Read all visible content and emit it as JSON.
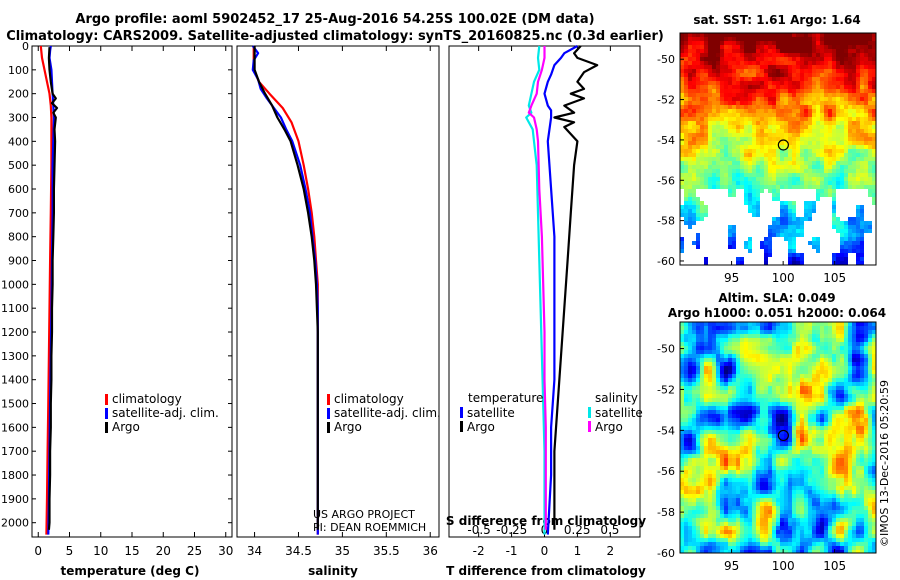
{
  "header": {
    "title_line1": "Argo profile: aoml 5902452_17 25-Aug-2016 54.25S 100.02E (DM data)",
    "title_line2": "Climatology: CARS2009. Satellite-adjusted climatology: synTS_20160825.nc (0.3d earlier)"
  },
  "colors": {
    "climatology": "#ff0000",
    "satellite_adj": "#0000ff",
    "argo": "#000000",
    "t_satellite": "#0000ff",
    "t_argo": "#000000",
    "s_satellite": "#00e8e8",
    "s_argo": "#ff00ff"
  },
  "chart_data": [
    {
      "id": "temperature",
      "type": "line",
      "xlabel": "temperature (deg C)",
      "ylabel": "",
      "xlim": [
        -1,
        31
      ],
      "ylim": [
        2060,
        0
      ],
      "xticks": [
        0,
        5,
        10,
        15,
        20,
        25,
        30
      ],
      "xtick_labels": [
        "0",
        "5",
        "10",
        "15",
        "20",
        "25",
        "30"
      ],
      "yticks": [
        0,
        100,
        200,
        300,
        400,
        500,
        600,
        700,
        800,
        900,
        1000,
        1100,
        1200,
        1300,
        1400,
        1500,
        1600,
        1700,
        1800,
        1900,
        2000
      ],
      "legend": [
        "climatology",
        "satellite-adj. clim.",
        "Argo"
      ],
      "series": [
        {
          "name": "climatology",
          "color_key": "climatology",
          "points": [
            [
              0.4,
              0
            ],
            [
              0.6,
              50
            ],
            [
              1.0,
              100
            ],
            [
              1.4,
              150
            ],
            [
              1.8,
              200
            ],
            [
              2.0,
              250
            ],
            [
              2.1,
              300
            ],
            [
              2.1,
              400
            ],
            [
              2.1,
              500
            ],
            [
              2.0,
              700
            ],
            [
              1.9,
              900
            ],
            [
              1.8,
              1100
            ],
            [
              1.7,
              1300
            ],
            [
              1.6,
              1500
            ],
            [
              1.5,
              1700
            ],
            [
              1.4,
              1900
            ],
            [
              1.3,
              2050
            ]
          ]
        },
        {
          "name": "satellite-adj. clim.",
          "color_key": "satellite_adj",
          "points": [
            [
              2.0,
              0
            ],
            [
              1.9,
              20
            ],
            [
              1.8,
              50
            ],
            [
              2.1,
              100
            ],
            [
              2.2,
              150
            ],
            [
              2.3,
              200
            ],
            [
              2.4,
              250
            ],
            [
              2.5,
              300
            ],
            [
              2.4,
              400
            ],
            [
              2.3,
              500
            ],
            [
              2.3,
              700
            ],
            [
              2.2,
              900
            ],
            [
              2.1,
              1100
            ],
            [
              2.0,
              1300
            ],
            [
              1.9,
              1500
            ],
            [
              1.8,
              1700
            ],
            [
              1.7,
              1900
            ],
            [
              1.6,
              2050
            ]
          ]
        },
        {
          "name": "Argo",
          "color_key": "argo",
          "points": [
            [
              1.8,
              5
            ],
            [
              1.7,
              50
            ],
            [
              1.8,
              100
            ],
            [
              2.0,
              150
            ],
            [
              2.3,
              200
            ],
            [
              2.8,
              220
            ],
            [
              2.2,
              240
            ],
            [
              3.0,
              260
            ],
            [
              2.4,
              280
            ],
            [
              2.8,
              300
            ],
            [
              2.6,
              350
            ],
            [
              2.7,
              400
            ],
            [
              2.6,
              500
            ],
            [
              2.5,
              600
            ],
            [
              2.5,
              700
            ],
            [
              2.4,
              800
            ],
            [
              2.3,
              900
            ],
            [
              2.3,
              1000
            ],
            [
              2.2,
              1100
            ],
            [
              2.2,
              1200
            ],
            [
              2.1,
              1300
            ],
            [
              2.1,
              1400
            ],
            [
              2.0,
              1500
            ],
            [
              2.0,
              1600
            ],
            [
              1.9,
              1700
            ],
            [
              1.9,
              1800
            ],
            [
              1.8,
              1900
            ],
            [
              1.8,
              2000
            ],
            [
              1.7,
              2030
            ]
          ]
        }
      ]
    },
    {
      "id": "salinity",
      "type": "line",
      "xlabel": "salinity",
      "xlim": [
        33.8,
        36.1
      ],
      "ylim": [
        2060,
        0
      ],
      "xticks": [
        34,
        34.5,
        35,
        35.5,
        36
      ],
      "xtick_labels": [
        "34",
        "34.5",
        "35",
        "35.5",
        "36"
      ],
      "legend": [
        "climatology",
        "satellite-adj. clim.",
        "Argo"
      ],
      "annotation_line1": "US ARGO PROJECT",
      "annotation_line2": "PI: DEAN ROEMMICH",
      "series": [
        {
          "name": "climatology",
          "color_key": "climatology",
          "points": [
            [
              33.99,
              0
            ],
            [
              33.99,
              100
            ],
            [
              34.05,
              150
            ],
            [
              34.17,
              200
            ],
            [
              34.32,
              260
            ],
            [
              34.42,
              320
            ],
            [
              34.5,
              400
            ],
            [
              34.56,
              500
            ],
            [
              34.61,
              600
            ],
            [
              34.65,
              700
            ],
            [
              34.68,
              800
            ],
            [
              34.7,
              900
            ],
            [
              34.72,
              1000
            ],
            [
              34.72,
              1200
            ],
            [
              34.72,
              1500
            ],
            [
              34.72,
              2050
            ]
          ]
        },
        {
          "name": "satellite-adj. clim.",
          "color_key": "satellite_adj",
          "points": [
            [
              33.98,
              0
            ],
            [
              34.04,
              30
            ],
            [
              33.99,
              60
            ],
            [
              33.98,
              100
            ],
            [
              34.04,
              140
            ],
            [
              34.07,
              180
            ],
            [
              34.14,
              220
            ],
            [
              34.22,
              260
            ],
            [
              34.3,
              300
            ],
            [
              34.36,
              350
            ],
            [
              34.43,
              400
            ],
            [
              34.52,
              500
            ],
            [
              34.58,
              600
            ],
            [
              34.63,
              700
            ],
            [
              34.66,
              800
            ],
            [
              34.69,
              900
            ],
            [
              34.71,
              1000
            ],
            [
              34.72,
              1100
            ],
            [
              34.72,
              1300
            ],
            [
              34.72,
              1500
            ],
            [
              34.72,
              2050
            ]
          ]
        },
        {
          "name": "Argo",
          "color_key": "argo",
          "points": [
            [
              34.0,
              0
            ],
            [
              34.0,
              50
            ],
            [
              34.0,
              100
            ],
            [
              34.05,
              150
            ],
            [
              34.12,
              200
            ],
            [
              34.2,
              250
            ],
            [
              34.26,
              300
            ],
            [
              34.34,
              350
            ],
            [
              34.41,
              400
            ],
            [
              34.49,
              500
            ],
            [
              34.56,
              600
            ],
            [
              34.61,
              700
            ],
            [
              34.65,
              800
            ],
            [
              34.68,
              900
            ],
            [
              34.7,
              1000
            ],
            [
              34.71,
              1100
            ],
            [
              34.72,
              1200
            ],
            [
              34.72,
              1500
            ],
            [
              34.72,
              2030
            ]
          ]
        }
      ]
    },
    {
      "id": "difference",
      "type": "line",
      "xlabel": "T difference from climatology",
      "top_xlabel": "S difference from climatology",
      "xlim": [
        -2.9,
        2.9
      ],
      "top_xlim": [
        -0.73,
        0.73
      ],
      "ylim": [
        2060,
        0
      ],
      "xticks": [
        -2,
        -1,
        0,
        1,
        2
      ],
      "xtick_labels": [
        "-2",
        "-1",
        "0",
        "1",
        "2"
      ],
      "top_xticks": [
        -0.5,
        -0.25,
        0,
        0.25,
        0.5
      ],
      "top_xtick_labels": [
        "-0.5",
        "-0.25",
        "0",
        "0.25",
        "0.5"
      ],
      "legend_temperature_title": "temperature",
      "legend_salinity_title": "salinity",
      "legend_t": [
        "satellite",
        "Argo"
      ],
      "legend_s": [
        "satellite",
        "Argo"
      ],
      "series": [
        {
          "name": "T satellite",
          "color_key": "t_satellite",
          "axis": "T",
          "points": [
            [
              1.0,
              0
            ],
            [
              0.6,
              30
            ],
            [
              0.5,
              50
            ],
            [
              0.3,
              80
            ],
            [
              0.2,
              120
            ],
            [
              0.1,
              150
            ],
            [
              0.0,
              200
            ],
            [
              0.1,
              250
            ],
            [
              0.2,
              270
            ],
            [
              0.2,
              300
            ],
            [
              0.1,
              400
            ],
            [
              0.2,
              600
            ],
            [
              0.3,
              800
            ],
            [
              0.3,
              1000
            ],
            [
              0.3,
              1200
            ],
            [
              0.3,
              1400
            ],
            [
              0.2,
              1600
            ],
            [
              0.2,
              1800
            ],
            [
              0.1,
              2050
            ]
          ]
        },
        {
          "name": "T Argo",
          "color_key": "t_argo",
          "axis": "T",
          "points": [
            [
              1.1,
              0
            ],
            [
              0.9,
              30
            ],
            [
              1.0,
              50
            ],
            [
              1.6,
              80
            ],
            [
              1.2,
              110
            ],
            [
              1.0,
              150
            ],
            [
              1.2,
              180
            ],
            [
              0.8,
              200
            ],
            [
              1.2,
              220
            ],
            [
              0.6,
              250
            ],
            [
              0.9,
              280
            ],
            [
              0.3,
              300
            ],
            [
              0.9,
              320
            ],
            [
              0.6,
              340
            ],
            [
              1.0,
              400
            ],
            [
              0.9,
              500
            ],
            [
              0.8,
              700
            ],
            [
              0.7,
              900
            ],
            [
              0.6,
              1100
            ],
            [
              0.5,
              1300
            ],
            [
              0.4,
              1500
            ],
            [
              0.3,
              1700
            ],
            [
              0.3,
              1900
            ],
            [
              0.3,
              2030
            ]
          ]
        },
        {
          "name": "S satellite",
          "color_key": "s_satellite",
          "axis": "S",
          "points": [
            [
              -0.04,
              0
            ],
            [
              -0.05,
              50
            ],
            [
              -0.04,
              100
            ],
            [
              -0.08,
              150
            ],
            [
              -0.1,
              200
            ],
            [
              -0.12,
              250
            ],
            [
              -0.1,
              280
            ],
            [
              -0.14,
              300
            ],
            [
              -0.09,
              350
            ],
            [
              -0.08,
              400
            ],
            [
              -0.06,
              500
            ],
            [
              -0.05,
              700
            ],
            [
              -0.04,
              900
            ],
            [
              -0.03,
              1100
            ],
            [
              -0.02,
              1300
            ],
            [
              -0.01,
              1500
            ],
            [
              0.0,
              1700
            ],
            [
              0.0,
              1900
            ],
            [
              0.0,
              2050
            ]
          ]
        },
        {
          "name": "S Argo",
          "color_key": "s_argo",
          "axis": "S",
          "points": [
            [
              0.0,
              0
            ],
            [
              0.0,
              50
            ],
            [
              -0.02,
              100
            ],
            [
              -0.05,
              150
            ],
            [
              -0.06,
              200
            ],
            [
              -0.1,
              250
            ],
            [
              -0.12,
              280
            ],
            [
              -0.08,
              300
            ],
            [
              -0.06,
              350
            ],
            [
              -0.05,
              400
            ],
            [
              -0.04,
              600
            ],
            [
              -0.02,
              800
            ],
            [
              -0.01,
              1000
            ],
            [
              0.0,
              1200
            ],
            [
              0.0,
              1400
            ],
            [
              0.01,
              1600
            ],
            [
              0.01,
              1800
            ],
            [
              0.01,
              2030
            ]
          ]
        }
      ]
    },
    {
      "id": "sst_map",
      "type": "heatmap",
      "title": "sat. SST: 1.61 Argo: 1.64",
      "xlim": [
        90,
        109
      ],
      "ylim": [
        -60.2,
        -48.7
      ],
      "xticks": [
        95,
        100,
        105
      ],
      "xtick_labels": [
        "95",
        "100",
        "105"
      ],
      "yticks": [
        -50,
        -52,
        -54,
        -56,
        -58,
        -60
      ],
      "ytick_labels": [
        "-50",
        "-52",
        "-54",
        "-56",
        "-58",
        "-60"
      ],
      "marker": {
        "lon": 100.02,
        "lat": -54.25
      }
    },
    {
      "id": "sla_map",
      "type": "heatmap",
      "title_line1": "Altim. SLA: 0.049",
      "title_line2": "Argo h1000: 0.051 h2000: 0.064",
      "xlim": [
        90,
        109
      ],
      "ylim": [
        -60,
        -48.7
      ],
      "xticks": [
        95,
        100,
        105
      ],
      "xtick_labels": [
        "95",
        "100",
        "105"
      ],
      "yticks": [
        -50,
        -52,
        -54,
        -56,
        -58,
        -60
      ],
      "ytick_labels": [
        "-50",
        "-52",
        "-54",
        "-56",
        "-58",
        "-60"
      ],
      "marker": {
        "lon": 100.02,
        "lat": -54.25
      },
      "credit": "©IMOS 13-Dec-2016 05:20:59"
    }
  ]
}
